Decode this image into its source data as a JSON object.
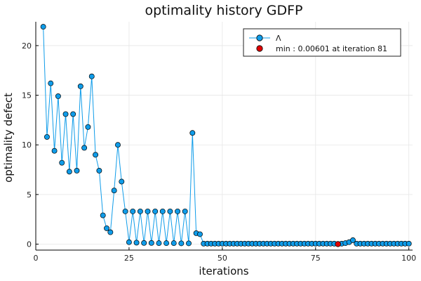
{
  "chart_data": {
    "type": "line",
    "title": "optimality history GDFP",
    "xlabel": "iterations",
    "ylabel": "optimality defect",
    "xlim": [
      0,
      101
    ],
    "ylim": [
      -0.6,
      22.4
    ],
    "xticks": [
      0,
      25,
      50,
      75,
      100
    ],
    "yticks": [
      0,
      5,
      10,
      15,
      20
    ],
    "grid": true,
    "legend_position": "top-right",
    "series": [
      {
        "name": "Λ",
        "color": "#0f9ce9",
        "x": [
          2,
          3,
          4,
          5,
          6,
          7,
          8,
          9,
          10,
          11,
          12,
          13,
          14,
          15,
          16,
          17,
          18,
          19,
          20,
          21,
          22,
          23,
          24,
          25,
          26,
          27,
          28,
          29,
          30,
          31,
          32,
          33,
          34,
          35,
          36,
          37,
          38,
          39,
          40,
          41,
          42,
          43,
          44,
          45,
          46,
          47,
          48,
          49,
          50,
          51,
          52,
          53,
          54,
          55,
          56,
          57,
          58,
          59,
          60,
          61,
          62,
          63,
          64,
          65,
          66,
          67,
          68,
          69,
          70,
          71,
          72,
          73,
          74,
          75,
          76,
          77,
          78,
          79,
          80,
          81,
          82,
          83,
          84,
          85,
          86,
          87,
          88,
          89,
          90,
          91,
          92,
          93,
          94,
          95,
          96,
          97,
          98,
          99,
          100
        ],
        "values": [
          21.9,
          10.8,
          16.2,
          9.4,
          14.9,
          8.2,
          13.1,
          7.3,
          13.1,
          7.4,
          15.9,
          9.7,
          11.8,
          16.9,
          9.0,
          7.4,
          2.9,
          1.6,
          1.2,
          5.4,
          10.0,
          6.3,
          3.3,
          0.2,
          3.3,
          0.15,
          3.3,
          0.12,
          3.3,
          0.12,
          3.3,
          0.1,
          3.3,
          0.1,
          3.3,
          0.1,
          3.3,
          0.08,
          3.3,
          0.08,
          11.2,
          1.1,
          1.0,
          0.05,
          0.05,
          0.05,
          0.05,
          0.05,
          0.05,
          0.05,
          0.05,
          0.05,
          0.05,
          0.05,
          0.05,
          0.05,
          0.05,
          0.05,
          0.05,
          0.05,
          0.05,
          0.05,
          0.05,
          0.05,
          0.05,
          0.05,
          0.05,
          0.05,
          0.05,
          0.05,
          0.05,
          0.05,
          0.05,
          0.05,
          0.05,
          0.05,
          0.05,
          0.05,
          0.05,
          0.006,
          0.05,
          0.1,
          0.2,
          0.4,
          0.05,
          0.05,
          0.05,
          0.05,
          0.05,
          0.05,
          0.05,
          0.05,
          0.05,
          0.05,
          0.05,
          0.05,
          0.05,
          0.05,
          0.05
        ]
      },
      {
        "name": "min : 0.00601 at iteration 81",
        "color": "#e00000",
        "x": [
          81
        ],
        "values": [
          0.00601
        ]
      }
    ]
  }
}
